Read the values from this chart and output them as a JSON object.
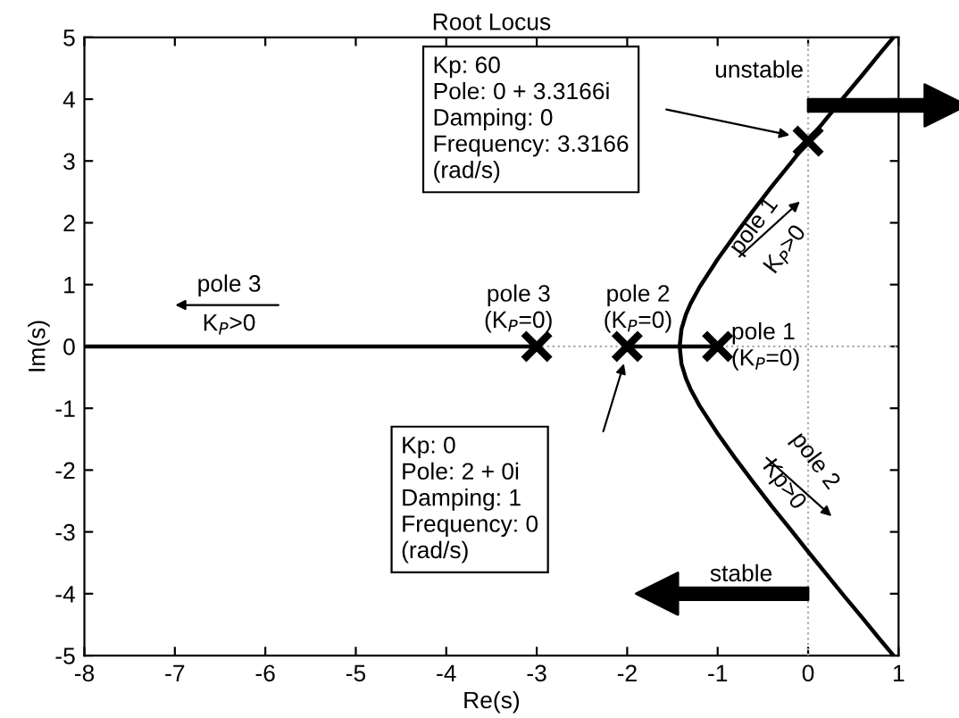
{
  "chart_data": {
    "type": "line",
    "title": "Root Locus",
    "xlabel": "Re(s)",
    "ylabel": "Im(s)",
    "xlim": [
      -8,
      1
    ],
    "ylim": [
      -5,
      5
    ],
    "xticks": [
      -8,
      -7,
      -6,
      -5,
      -4,
      -3,
      -2,
      -1,
      0,
      1
    ],
    "yticks": [
      -5,
      -4,
      -3,
      -2,
      -1,
      0,
      1,
      2,
      3,
      4,
      5
    ],
    "grid": false,
    "line_style": "solid",
    "series": [
      {
        "color": "#aaaaaa",
        "line_style": "dotted",
        "x": [
          0,
          0
        ],
        "values": [
          -5,
          5
        ]
      },
      {
        "color": "#aaaaaa",
        "line_style": "dotted",
        "x": [
          -3,
          1
        ],
        "values": [
          0,
          0
        ]
      },
      {
        "color": "#000000",
        "x": [
          0.944,
          0.8,
          0.6,
          0.4,
          0.2,
          0.0,
          -0.2,
          -0.4,
          -0.6,
          -0.8,
          -1.0,
          -1.2,
          -1.3,
          -1.35,
          -1.4,
          -1.42,
          -1.4,
          -1.35,
          -1.3,
          -1.2,
          -1.0,
          -0.8,
          -0.6,
          -0.4,
          -0.2,
          0.0,
          0.2,
          0.4,
          0.6,
          0.8,
          0.944
        ],
        "values": [
          -5.0,
          -4.75,
          -4.39,
          -4.04,
          -3.68,
          -3.32,
          -2.95,
          -2.59,
          -2.21,
          -1.82,
          -1.41,
          -0.96,
          -0.69,
          -0.52,
          -0.28,
          0.0,
          0.28,
          0.52,
          0.69,
          0.96,
          1.41,
          1.82,
          2.21,
          2.59,
          2.95,
          3.32,
          3.68,
          4.04,
          4.39,
          4.75,
          5.0
        ]
      },
      {
        "color": "#000000",
        "x": [
          -8,
          -3
        ],
        "values": [
          0,
          0
        ]
      },
      {
        "color": "#000000",
        "x": [
          -2,
          -1
        ],
        "values": [
          0,
          0
        ]
      },
      {
        "type": "scatter",
        "marker": "cross",
        "color": "#000000",
        "x": [
          -3,
          -2,
          -1,
          0
        ],
        "values": [
          0,
          0,
          0,
          3.32
        ]
      }
    ],
    "annotations": [
      "Kp: 60\nPole: 0 + 3.3166i\nDamping: 0\nFrequency: 3.3166\n(rad/s)",
      "Kp: 0\nPole: 2 + 0i\nDamping: 1\nFrequency: 0\n(rad/s)",
      "pole 3\n(K$_{P}$=0)",
      "pole 2\n(K$_{P}$=0)",
      "pole 1\n(K$_{P}$=0)",
      "pole 3\nK$_{P}$>0",
      "pole 1\nK$_{P}$>0",
      "pole 2\nKp>0",
      "unstable",
      "stable"
    ]
  }
}
